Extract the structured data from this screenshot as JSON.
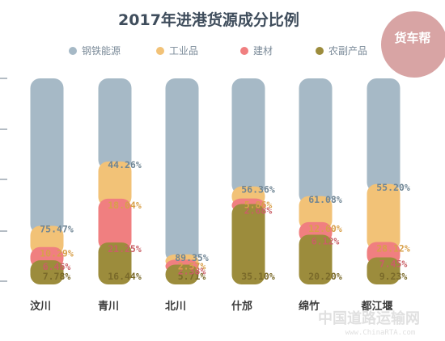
{
  "chart_data": {
    "type": "bar",
    "stacked": true,
    "title": "2017年进港货源成分比例",
    "categories": [
      "汶川",
      "青川",
      "北川",
      "什邡",
      "绵竹",
      "都江堰"
    ],
    "series": [
      {
        "name": "农副产品",
        "color": "#9c8c3c",
        "label_color": "#7a6a2a",
        "values": [
          7.78,
          16.44,
          5.71,
          35.1,
          20.2,
          9.23
        ],
        "labels": [
          "7.78%",
          "16.44%",
          "5.71%",
          "35.10%",
          "20.20%",
          "9.23%"
        ]
      },
      {
        "name": "建材",
        "color": "#f07f80",
        "label_color": "#c95f66",
        "values": [
          6.46,
          21.25,
          2.38,
          2.68,
          6.12,
          7.45
        ],
        "labels": [
          "6.46%",
          "21.25%",
          "2.38%",
          "2.68%",
          "6.12%",
          "7.45%"
        ]
      },
      {
        "name": "工业品",
        "color": "#f2c277",
        "label_color": "#d8a04a",
        "values": [
          10.29,
          18.04,
          2.57,
          5.86,
          12.6,
          28.12
        ],
        "labels": [
          "10.29%",
          "18.04%",
          "2.57%",
          "5.86%",
          "12.60%",
          "28.12%"
        ]
      },
      {
        "name": "钢铁能源",
        "color": "#a6b9c6",
        "label_color": "#6f8594",
        "values": [
          75.47,
          44.26,
          89.35,
          56.36,
          61.08,
          55.2
        ],
        "labels": [
          "75.47%",
          "44.26%",
          "89.35%",
          "56.36%",
          "61.08%",
          "55.20%"
        ]
      }
    ],
    "legend_order": [
      "钢铁能源",
      "工业品",
      "建材",
      "农副产品"
    ],
    "legend_position": "top",
    "extra_labels": [
      {
        "category_index": 2,
        "text": "6.71%"
      }
    ]
  },
  "logo": {
    "text": "货车帮"
  },
  "watermark": {
    "text": "中国道路运输网",
    "sub": "www.ChinaRTA.com"
  }
}
